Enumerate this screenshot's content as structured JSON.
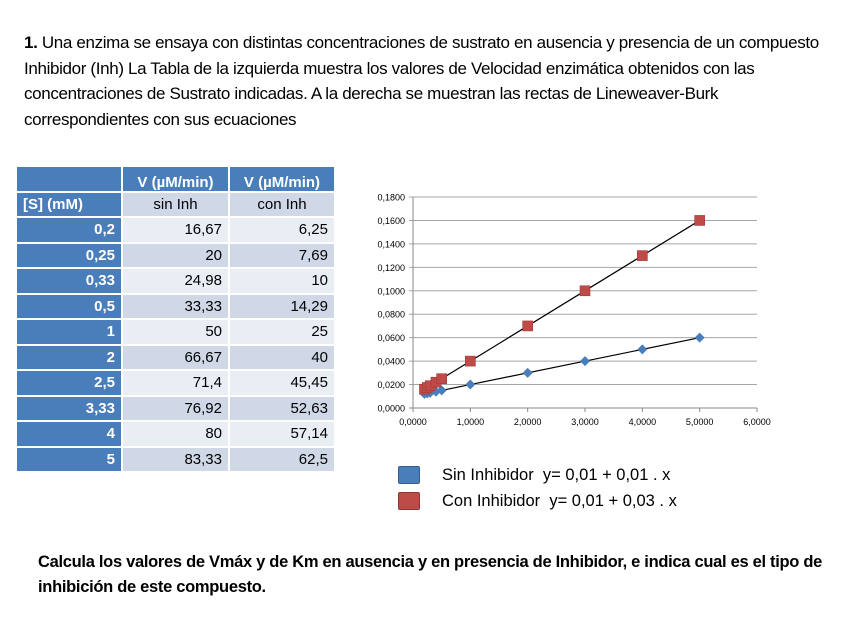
{
  "intro": {
    "number": "1.",
    "text": "Una enzima se ensaya con distintas concentraciones de sustrato en ausencia y presencia de un compuesto Inhibidor (Inh) La Tabla de la izquierda muestra los valores de Velocidad enzimática obtenidos con las concentraciones de Sustrato indicadas. A la derecha se muestran las rectas de Lineweaver-Burk correspondientes con sus ecuaciones"
  },
  "table": {
    "header_top": [
      "",
      "V (µM/min)",
      "V (µM/min)"
    ],
    "header_sub": [
      "[S] (mM)",
      "sin Inh",
      "con Inh"
    ],
    "rows": [
      {
        "s": "0,2",
        "sin": "16,67",
        "con": "6,25"
      },
      {
        "s": "0,25",
        "sin": "20",
        "con": "7,69"
      },
      {
        "s": "0,33",
        "sin": "24,98",
        "con": "10"
      },
      {
        "s": "0,5",
        "sin": "33,33",
        "con": "14,29"
      },
      {
        "s": "1",
        "sin": "50",
        "con": "25"
      },
      {
        "s": "2",
        "sin": "66,67",
        "con": "40"
      },
      {
        "s": "2,5",
        "sin": "71,4",
        "con": "45,45"
      },
      {
        "s": "3,33",
        "sin": "76,92",
        "con": "52,63"
      },
      {
        "s": "4",
        "sin": "80",
        "con": "57,14"
      },
      {
        "s": "5",
        "sin": "83,33",
        "con": "62,5"
      }
    ]
  },
  "legend": {
    "sin": {
      "label": "Sin Inhibidor",
      "equation": "y= 0,01 + 0,01 . x",
      "color": "#4a7ebb"
    },
    "con": {
      "label": "Con Inhibidor",
      "equation": "y= 0,01 + 0,03 . x",
      "color": "#be4b48"
    }
  },
  "question": "Calcula los valores de Vmáx y de Km en ausencia y en presencia de Inhibidor, e indica cual es el tipo de inhibición de este compuesto.",
  "chart_data": {
    "type": "scatter",
    "title": "",
    "xlabel": "",
    "ylabel": "",
    "xlim": [
      0,
      6
    ],
    "ylim": [
      0,
      0.18
    ],
    "x_ticks": [
      "0,0000",
      "1,0000",
      "2,0000",
      "3,0000",
      "4,0000",
      "5,0000",
      "6,0000"
    ],
    "y_ticks": [
      "0,0000",
      "0,0200",
      "0,0400",
      "0,0600",
      "0,0800",
      "0,1000",
      "0,1200",
      "0,1400",
      "0,1600",
      "0,1800"
    ],
    "grid": "horizontal",
    "legend_position": "bottom",
    "series": [
      {
        "name": "Sin Inhibidor",
        "marker": "diamond",
        "color": "#4a7ebb",
        "x": [
          0.2,
          0.25,
          0.3,
          0.4,
          0.5,
          1,
          2,
          3,
          4,
          5
        ],
        "y": [
          0.012,
          0.0125,
          0.013,
          0.014,
          0.015,
          0.02,
          0.03,
          0.04,
          0.05,
          0.06
        ],
        "trendline": {
          "intercept": 0.01,
          "slope": 0.01,
          "x_range": [
            0.2,
            5
          ]
        }
      },
      {
        "name": "Con Inhibidor",
        "marker": "square",
        "color": "#be4b48",
        "x": [
          0.2,
          0.25,
          0.3,
          0.4,
          0.5,
          1,
          2,
          3,
          4,
          5
        ],
        "y": [
          0.016,
          0.0175,
          0.019,
          0.022,
          0.025,
          0.04,
          0.07,
          0.1,
          0.13,
          0.16
        ],
        "trendline": {
          "intercept": 0.01,
          "slope": 0.03,
          "x_range": [
            0.2,
            5
          ]
        }
      }
    ]
  }
}
